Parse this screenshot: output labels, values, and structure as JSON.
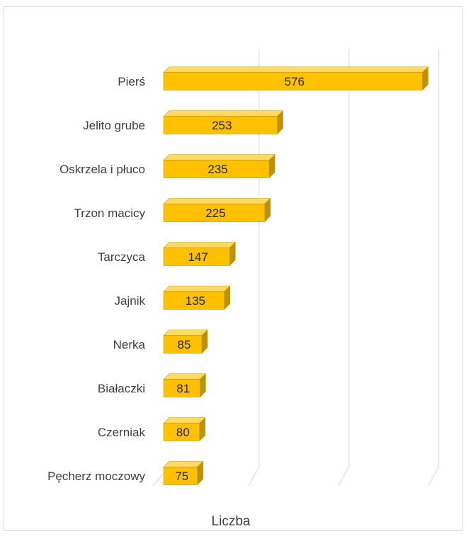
{
  "chart_data": {
    "type": "bar",
    "orientation": "horizontal",
    "style": "3d",
    "categories": [
      "Pierś",
      "Jelito grube",
      "Oskrzela i płuco",
      "Trzon macicy",
      "Tarczyca",
      "Jajnik",
      "Nerka",
      "Białaczki",
      "Czerniak",
      "Pęcherz moczowy"
    ],
    "values": [
      576,
      253,
      235,
      225,
      147,
      135,
      85,
      81,
      80,
      75
    ],
    "value_labels": [
      "576",
      "253",
      "235",
      "225",
      "147",
      "135",
      "85",
      "81",
      "80",
      "75"
    ],
    "xlabel": "Liczba",
    "xlim": [
      0,
      800
    ],
    "x_gridlines": [
      200,
      400,
      600,
      800
    ],
    "grid": true,
    "legend": "none",
    "colors": {
      "bar_front": "#ffc000",
      "bar_top": "#ffd966",
      "bar_side": "#bf9000",
      "bar_edge": "#c79a00",
      "gridline": "#d9d9d9",
      "frame": "#d9d9d9"
    }
  }
}
